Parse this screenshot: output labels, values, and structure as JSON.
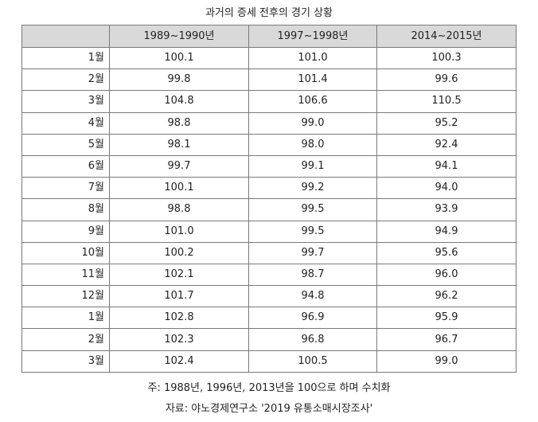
{
  "title": "과거의 증세 전후의 경기 상황",
  "table": {
    "headers": [
      "",
      "1989~1990년",
      "1997~1998년",
      "2014~2015년"
    ],
    "rows": [
      {
        "month": "1월",
        "values": [
          "100.1",
          "101.0",
          "100.3"
        ]
      },
      {
        "month": "2월",
        "values": [
          "99.8",
          "101.4",
          "99.6"
        ]
      },
      {
        "month": "3월",
        "values": [
          "104.8",
          "106.6",
          "110.5"
        ]
      },
      {
        "month": "4월",
        "values": [
          "98.8",
          "99.0",
          "95.2"
        ]
      },
      {
        "month": "5월",
        "values": [
          "98.1",
          "98.0",
          "92.4"
        ]
      },
      {
        "month": "6월",
        "values": [
          "99.7",
          "99.1",
          "94.1"
        ]
      },
      {
        "month": "7월",
        "values": [
          "100.1",
          "99.2",
          "94.0"
        ]
      },
      {
        "month": "8월",
        "values": [
          "98.8",
          "99.5",
          "93.9"
        ]
      },
      {
        "month": "9월",
        "values": [
          "101.0",
          "99.5",
          "94.9"
        ]
      },
      {
        "month": "10월",
        "values": [
          "100.2",
          "99.7",
          "95.6"
        ]
      },
      {
        "month": "11월",
        "values": [
          "102.1",
          "98.7",
          "96.0"
        ]
      },
      {
        "month": "12월",
        "values": [
          "101.7",
          "94.8",
          "96.2"
        ]
      },
      {
        "month": "1월",
        "values": [
          "102.8",
          "96.9",
          "95.9"
        ]
      },
      {
        "month": "2월",
        "values": [
          "102.3",
          "96.8",
          "96.7"
        ]
      },
      {
        "month": "3월",
        "values": [
          "102.4",
          "100.5",
          "99.0"
        ]
      }
    ]
  },
  "notes": {
    "note": "주: 1988년, 1996년, 2013년을 100으로 하며 수치화",
    "source": "자료: 야노경제연구소 '2019 유통소매시장조사'"
  }
}
